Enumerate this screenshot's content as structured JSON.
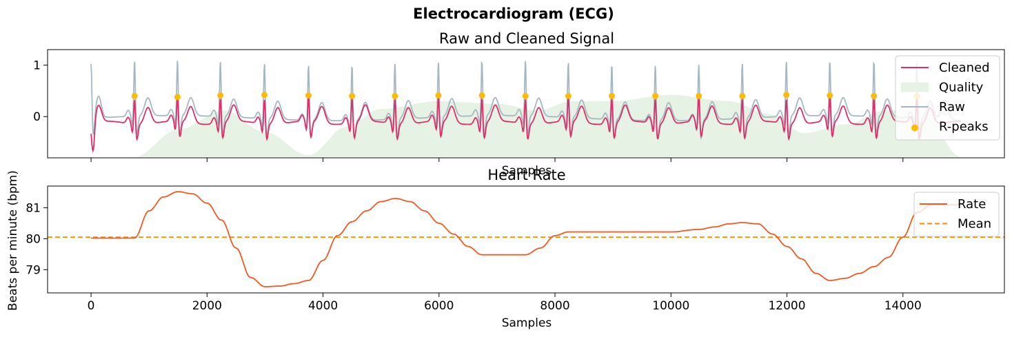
{
  "figure": {
    "title": "Electrocardiogram (ECG)"
  },
  "chart_data": [
    {
      "type": "line",
      "title": "Raw and Cleaned Signal",
      "xlabel": "Samples",
      "ylabel": "",
      "xlim": [
        -750,
        15750
      ],
      "ylim": [
        -0.8,
        1.3
      ],
      "yticks": [
        1,
        0
      ],
      "grid": false,
      "legend_position": "top-right",
      "colors": {
        "cleaned": "#de2d6b",
        "raw": "#a5b8c2",
        "quality": "#e6f3e4",
        "rpeaks": "#fbbc05"
      },
      "legend": [
        "Cleaned",
        "Quality",
        "Raw",
        "R-peaks"
      ],
      "rpeaks_x": [
        750,
        1490,
        2230,
        2990,
        3750,
        4500,
        5240,
        5990,
        6740,
        7490,
        8230,
        8980,
        9730,
        10480,
        11230,
        11990,
        12740,
        13500,
        14240
      ],
      "rpeaks_y": [
        0.4,
        0.38,
        0.41,
        0.42,
        0.41,
        0.4,
        0.4,
        0.41,
        0.41,
        0.4,
        0.4,
        0.4,
        0.4,
        0.4,
        0.4,
        0.42,
        0.41,
        0.4,
        0.4
      ],
      "quality_x": [
        750,
        1500,
        2300,
        3000,
        3750,
        4400,
        5000,
        6000,
        7000,
        7700,
        8300,
        9000,
        10000,
        11000,
        11700,
        12300,
        13000,
        13700,
        14300,
        15000
      ],
      "quality_y": [
        -0.78,
        -0.25,
        0.12,
        -0.3,
        -0.75,
        -0.2,
        0.15,
        0.3,
        0.25,
        0.12,
        0.3,
        0.3,
        0.42,
        0.3,
        0.05,
        -0.32,
        -0.15,
        0.12,
        0.15,
        -0.78
      ]
    },
    {
      "type": "line",
      "title": "Heart Rate",
      "xlabel": "Samples",
      "ylabel": "Beats per minute (bpm)",
      "xlim": [
        -750,
        15750
      ],
      "ylim": [
        78.25,
        81.7
      ],
      "xticks": [
        0,
        2000,
        4000,
        6000,
        8000,
        10000,
        12000,
        14000
      ],
      "yticks": [
        81,
        80,
        79
      ],
      "grid": false,
      "legend_position": "top-right",
      "colors": {
        "rate": "#f4581f",
        "mean": "#fb8c00"
      },
      "legend": [
        "Rate",
        "Mean"
      ],
      "mean": 80.05,
      "series": [
        {
          "name": "Rate",
          "x": [
            0,
            750,
            1000,
            1250,
            1500,
            1750,
            2000,
            2250,
            2500,
            2750,
            3000,
            3250,
            3500,
            3750,
            4000,
            4250,
            4500,
            4750,
            5000,
            5250,
            5500,
            5750,
            6000,
            6250,
            6500,
            6740,
            7000,
            7250,
            7490,
            7750,
            8000,
            8230,
            8500,
            9000,
            9500,
            10000,
            10480,
            10750,
            11000,
            11230,
            11500,
            11750,
            12000,
            12250,
            12500,
            12740,
            13000,
            13250,
            13500,
            13750,
            14000,
            14240,
            14500,
            15000
          ],
          "y": [
            80.02,
            80.02,
            80.9,
            81.35,
            81.52,
            81.45,
            81.15,
            80.6,
            79.7,
            78.75,
            78.45,
            78.47,
            78.55,
            78.65,
            79.3,
            80.1,
            80.55,
            80.9,
            81.2,
            81.3,
            81.2,
            80.9,
            80.5,
            80.15,
            79.75,
            79.48,
            79.48,
            79.48,
            79.48,
            79.7,
            80.1,
            80.22,
            80.22,
            80.22,
            80.22,
            80.22,
            80.3,
            80.38,
            80.48,
            80.52,
            80.48,
            80.15,
            79.75,
            79.35,
            78.88,
            78.65,
            78.72,
            78.88,
            79.1,
            79.4,
            80.05,
            80.85,
            81.1,
            81.1
          ]
        }
      ]
    }
  ]
}
